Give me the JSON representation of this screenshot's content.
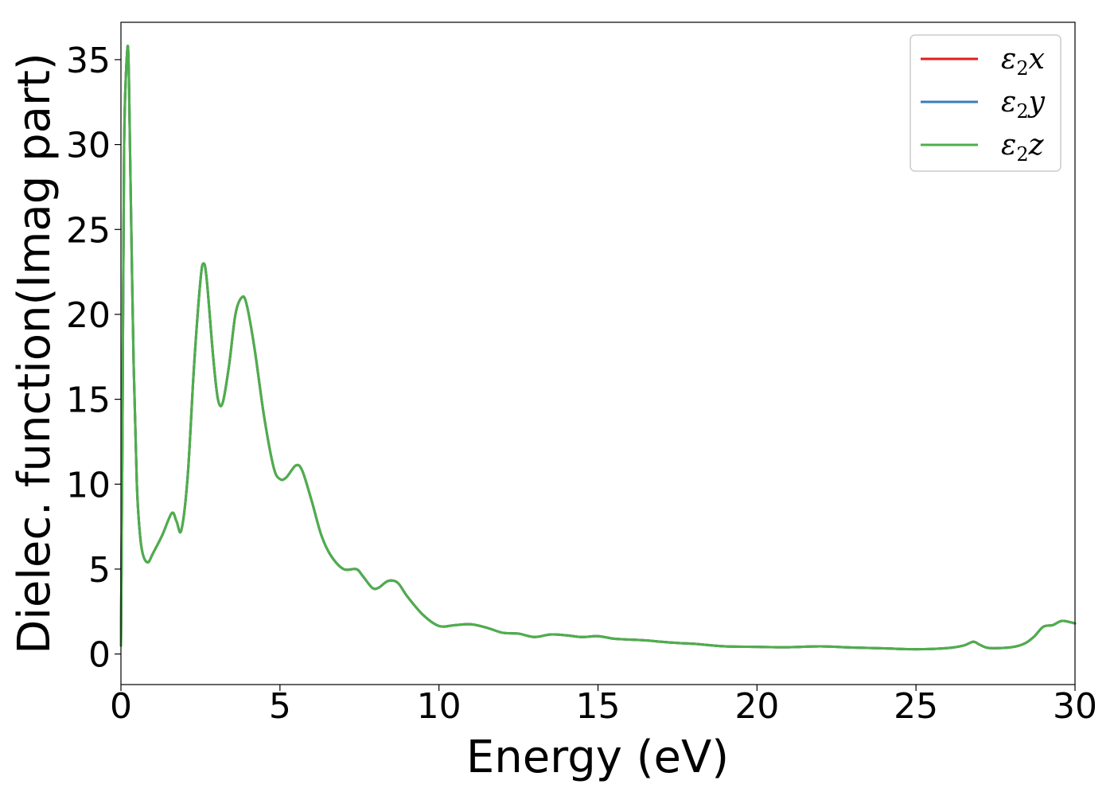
{
  "chart_data": {
    "type": "line",
    "xlabel": "Energy (eV)",
    "ylabel": "Dielec. function(Imag part)",
    "xlim": [
      0,
      30
    ],
    "ylim": [
      -1.8,
      37.2
    ],
    "xticks": [
      0,
      5,
      10,
      15,
      20,
      25,
      30
    ],
    "yticks": [
      0,
      5,
      10,
      15,
      20,
      25,
      30,
      35
    ],
    "grid": false,
    "legend_position": "top-right",
    "series": [
      {
        "name": "ε₂x",
        "legend_base": "ε",
        "legend_sub": "2",
        "legend_suffix": "x",
        "color": "#e41a1c",
        "x": [
          0,
          0.05,
          0.1,
          0.2,
          0.25,
          0.3,
          0.4,
          0.5,
          0.6,
          0.7,
          0.85,
          1.0,
          1.3,
          1.6,
          1.75,
          1.9,
          2.1,
          2.3,
          2.5,
          2.6,
          2.7,
          2.9,
          3.05,
          3.2,
          3.4,
          3.6,
          3.8,
          3.95,
          4.2,
          4.5,
          4.8,
          5.0,
          5.2,
          5.5,
          5.7,
          6.0,
          6.3,
          6.6,
          7.0,
          7.4,
          7.6,
          7.9,
          8.1,
          8.4,
          8.7,
          9.0,
          9.5,
          10.0,
          10.5,
          11.0,
          11.5,
          12.0,
          12.5,
          13.0,
          13.5,
          14.0,
          14.5,
          15.0,
          15.5,
          16.0,
          16.5,
          17.0,
          17.5,
          18.0,
          18.5,
          19.0,
          20.0,
          21.0,
          22.0,
          23.0,
          24.0,
          25.0,
          26.0,
          26.5,
          26.8,
          27.0,
          27.3,
          28.0,
          28.4,
          28.7,
          29.0,
          29.3,
          29.6,
          30.0
        ],
        "values": [
          0.5,
          14,
          30,
          35.6,
          34.0,
          28.0,
          17.0,
          10.0,
          7.0,
          5.8,
          5.4,
          5.9,
          7.0,
          8.3,
          7.8,
          7.3,
          10.5,
          17.0,
          22.0,
          23.0,
          22.0,
          17.5,
          15.0,
          14.8,
          17.0,
          20.0,
          21.0,
          20.6,
          18.0,
          14.0,
          11.0,
          10.3,
          10.4,
          11.1,
          10.8,
          9.0,
          7.0,
          5.8,
          5.0,
          5.0,
          4.6,
          3.9,
          3.9,
          4.3,
          4.2,
          3.4,
          2.3,
          1.65,
          1.7,
          1.75,
          1.55,
          1.25,
          1.2,
          1.0,
          1.15,
          1.1,
          1.0,
          1.05,
          0.9,
          0.85,
          0.8,
          0.72,
          0.65,
          0.6,
          0.52,
          0.45,
          0.42,
          0.4,
          0.45,
          0.38,
          0.33,
          0.28,
          0.35,
          0.5,
          0.72,
          0.55,
          0.35,
          0.4,
          0.6,
          1.0,
          1.6,
          1.7,
          1.95,
          1.8
        ]
      },
      {
        "name": "ε₂y",
        "legend_base": "ε",
        "legend_sub": "2",
        "legend_suffix": "y",
        "color": "#377eb8",
        "x": [
          0,
          0.05,
          0.1,
          0.2,
          0.25,
          0.3,
          0.4,
          0.5,
          0.6,
          0.7,
          0.85,
          1.0,
          1.3,
          1.6,
          1.75,
          1.9,
          2.1,
          2.3,
          2.5,
          2.6,
          2.7,
          2.9,
          3.05,
          3.2,
          3.4,
          3.6,
          3.8,
          3.95,
          4.2,
          4.5,
          4.8,
          5.0,
          5.2,
          5.5,
          5.7,
          6.0,
          6.3,
          6.6,
          7.0,
          7.4,
          7.6,
          7.9,
          8.1,
          8.4,
          8.7,
          9.0,
          9.5,
          10.0,
          10.5,
          11.0,
          11.5,
          12.0,
          12.5,
          13.0,
          13.5,
          14.0,
          14.5,
          15.0,
          15.5,
          16.0,
          16.5,
          17.0,
          17.5,
          18.0,
          18.5,
          19.0,
          20.0,
          21.0,
          22.0,
          23.0,
          24.0,
          25.0,
          26.0,
          26.5,
          26.8,
          27.0,
          27.3,
          28.0,
          28.4,
          28.7,
          29.0,
          29.3,
          29.6,
          30.0
        ],
        "values": [
          0.5,
          14,
          30,
          35.6,
          34.0,
          28.0,
          17.0,
          10.0,
          7.0,
          5.8,
          5.4,
          5.9,
          7.0,
          8.3,
          7.8,
          7.3,
          10.5,
          17.0,
          22.0,
          23.0,
          22.0,
          17.5,
          15.0,
          14.8,
          17.0,
          20.0,
          21.0,
          20.6,
          18.0,
          14.0,
          11.0,
          10.3,
          10.4,
          11.1,
          10.8,
          9.0,
          7.0,
          5.8,
          5.0,
          5.0,
          4.6,
          3.9,
          3.9,
          4.3,
          4.2,
          3.4,
          2.3,
          1.65,
          1.7,
          1.75,
          1.55,
          1.25,
          1.2,
          1.0,
          1.15,
          1.1,
          1.0,
          1.05,
          0.9,
          0.85,
          0.8,
          0.72,
          0.65,
          0.6,
          0.52,
          0.45,
          0.42,
          0.4,
          0.45,
          0.38,
          0.33,
          0.28,
          0.35,
          0.5,
          0.72,
          0.55,
          0.35,
          0.4,
          0.6,
          1.0,
          1.6,
          1.7,
          1.95,
          1.8
        ]
      },
      {
        "name": "ε₂z",
        "legend_base": "ε",
        "legend_sub": "2",
        "legend_suffix": "z",
        "color": "#4daf4a",
        "x": [
          0,
          0.05,
          0.1,
          0.2,
          0.25,
          0.3,
          0.4,
          0.5,
          0.6,
          0.7,
          0.85,
          1.0,
          1.3,
          1.6,
          1.75,
          1.9,
          2.1,
          2.3,
          2.5,
          2.6,
          2.7,
          2.9,
          3.05,
          3.2,
          3.4,
          3.6,
          3.8,
          3.95,
          4.2,
          4.5,
          4.8,
          5.0,
          5.2,
          5.5,
          5.7,
          6.0,
          6.3,
          6.6,
          7.0,
          7.4,
          7.6,
          7.9,
          8.1,
          8.4,
          8.7,
          9.0,
          9.5,
          10.0,
          10.5,
          11.0,
          11.5,
          12.0,
          12.5,
          13.0,
          13.5,
          14.0,
          14.5,
          15.0,
          15.5,
          16.0,
          16.5,
          17.0,
          17.5,
          18.0,
          18.5,
          19.0,
          20.0,
          21.0,
          22.0,
          23.0,
          24.0,
          25.0,
          26.0,
          26.5,
          26.8,
          27.0,
          27.3,
          28.0,
          28.4,
          28.7,
          29.0,
          29.3,
          29.6,
          30.0
        ],
        "values": [
          0.5,
          14,
          30,
          35.6,
          34.0,
          28.0,
          17.0,
          10.0,
          7.0,
          5.8,
          5.4,
          5.9,
          7.0,
          8.3,
          7.8,
          7.3,
          10.5,
          17.0,
          22.0,
          23.0,
          22.0,
          17.5,
          15.0,
          14.8,
          17.0,
          20.0,
          21.0,
          20.6,
          18.0,
          14.0,
          11.0,
          10.3,
          10.4,
          11.1,
          10.8,
          9.0,
          7.0,
          5.8,
          5.0,
          5.0,
          4.6,
          3.9,
          3.9,
          4.3,
          4.2,
          3.4,
          2.3,
          1.65,
          1.7,
          1.75,
          1.55,
          1.25,
          1.2,
          1.0,
          1.15,
          1.1,
          1.0,
          1.05,
          0.9,
          0.85,
          0.8,
          0.72,
          0.65,
          0.6,
          0.52,
          0.45,
          0.42,
          0.4,
          0.45,
          0.38,
          0.33,
          0.28,
          0.35,
          0.5,
          0.72,
          0.55,
          0.35,
          0.4,
          0.6,
          1.0,
          1.6,
          1.7,
          1.95,
          1.8
        ]
      }
    ]
  }
}
